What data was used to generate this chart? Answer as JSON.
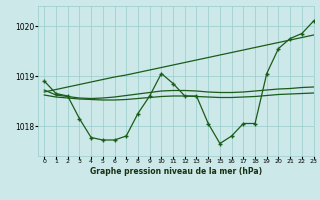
{
  "bg_color": "#cce8e8",
  "grid_color": "#99cccc",
  "line_color": "#1a5c1a",
  "xlabel": "Graphe pression niveau de la mer (hPa)",
  "ylim": [
    1017.4,
    1020.4
  ],
  "xlim": [
    -0.5,
    23
  ],
  "yticks": [
    1018,
    1019,
    1020
  ],
  "xticks": [
    0,
    1,
    2,
    3,
    4,
    5,
    6,
    7,
    8,
    9,
    10,
    11,
    12,
    13,
    14,
    15,
    16,
    17,
    18,
    19,
    20,
    21,
    22,
    23
  ],
  "series_main": [
    1018.9,
    1018.65,
    1018.6,
    1018.15,
    1017.77,
    1017.72,
    1017.72,
    1017.8,
    1018.25,
    1018.6,
    1019.05,
    1018.85,
    1018.6,
    1018.6,
    1018.05,
    1017.65,
    1017.8,
    1018.05,
    1018.05,
    1019.05,
    1019.55,
    1019.75,
    1019.85,
    1020.1
  ],
  "series_smooth1": [
    1018.72,
    1018.62,
    1018.59,
    1018.56,
    1018.55,
    1018.56,
    1018.58,
    1018.61,
    1018.64,
    1018.67,
    1018.7,
    1018.71,
    1018.71,
    1018.7,
    1018.68,
    1018.67,
    1018.67,
    1018.68,
    1018.7,
    1018.72,
    1018.74,
    1018.75,
    1018.77,
    1018.78
  ],
  "series_smooth2": [
    1018.62,
    1018.58,
    1018.56,
    1018.54,
    1018.53,
    1018.52,
    1018.52,
    1018.53,
    1018.55,
    1018.57,
    1018.59,
    1018.6,
    1018.6,
    1018.59,
    1018.58,
    1018.57,
    1018.57,
    1018.58,
    1018.59,
    1018.61,
    1018.63,
    1018.64,
    1018.65,
    1018.66
  ],
  "series_trend": [
    1018.68,
    1018.73,
    1018.78,
    1018.83,
    1018.88,
    1018.93,
    1018.98,
    1019.02,
    1019.07,
    1019.12,
    1019.17,
    1019.22,
    1019.27,
    1019.32,
    1019.37,
    1019.42,
    1019.47,
    1019.52,
    1019.57,
    1019.62,
    1019.67,
    1019.72,
    1019.77,
    1019.82
  ]
}
